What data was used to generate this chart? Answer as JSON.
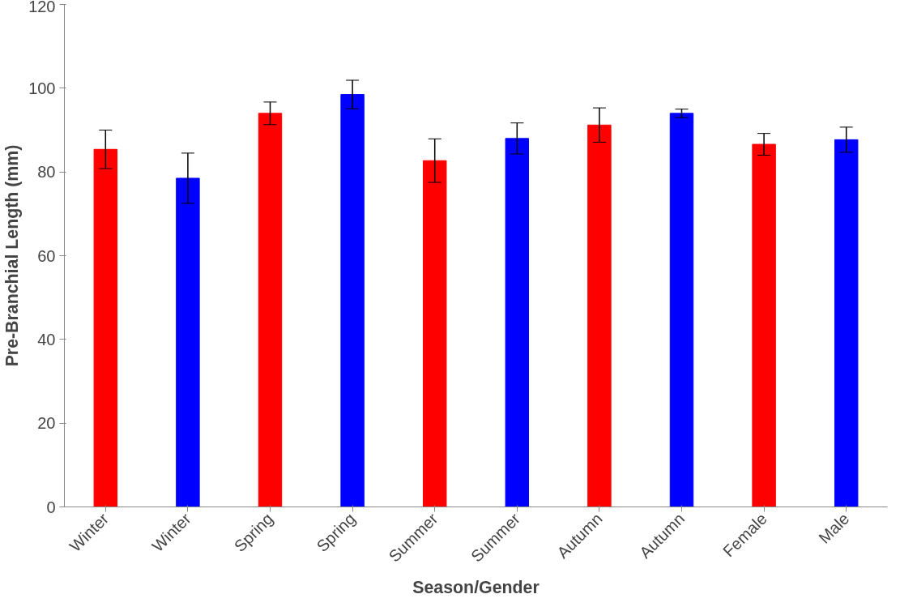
{
  "chart_data": {
    "type": "bar",
    "xlabel": "Season/Gender",
    "ylabel": "Pre-Branchial Length (mm)",
    "categories": [
      "Winter",
      "Winter",
      "Spring",
      "Spring",
      "Summer",
      "Summer",
      "Autumn",
      "Autumn",
      "Female",
      "Male"
    ],
    "values": [
      85.4,
      78.5,
      94.0,
      98.5,
      82.7,
      88.0,
      91.2,
      94.0,
      86.6,
      87.7
    ],
    "errors": [
      4.6,
      6.0,
      2.7,
      3.4,
      5.2,
      3.7,
      4.1,
      1.0,
      2.6,
      3.0
    ],
    "colors": [
      "#ff0000",
      "#0000ff",
      "#ff0000",
      "#0000ff",
      "#ff0000",
      "#0000ff",
      "#ff0000",
      "#0000ff",
      "#ff0000",
      "#0000ff"
    ],
    "ylim": [
      0,
      120
    ],
    "yticks": [
      0,
      20,
      40,
      60,
      80,
      100,
      120
    ],
    "grid": false
  }
}
